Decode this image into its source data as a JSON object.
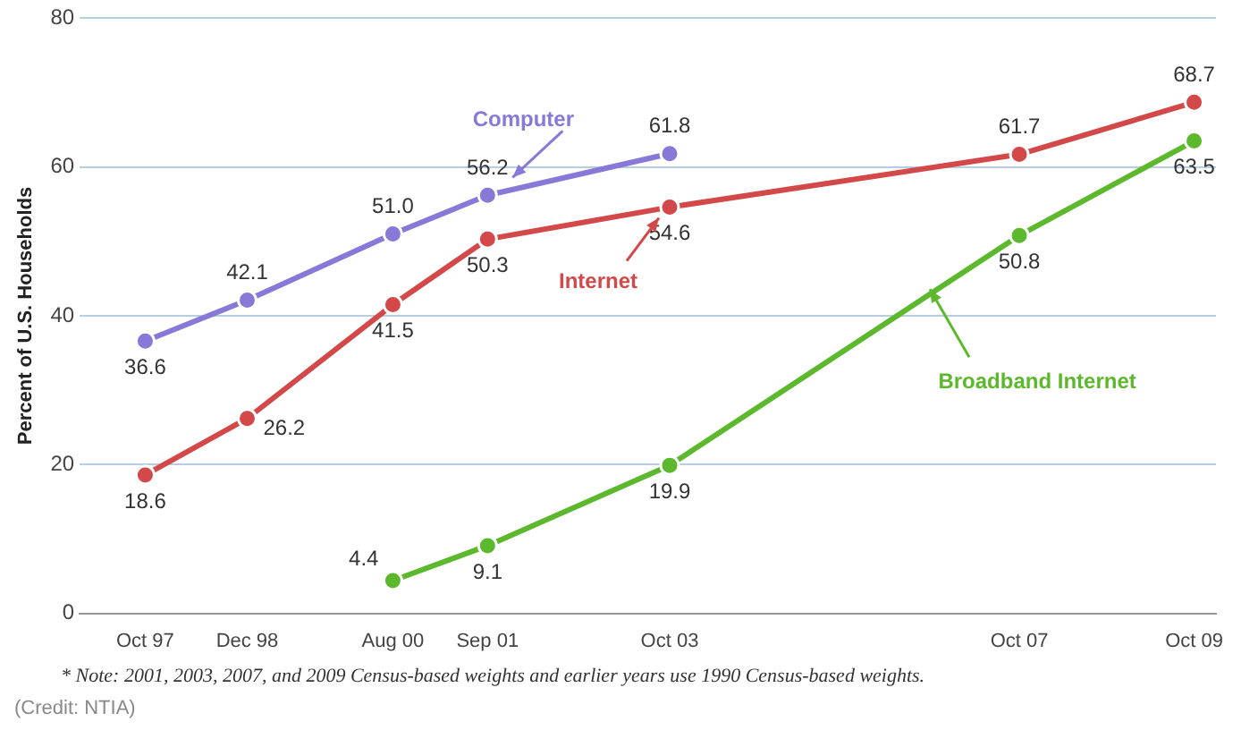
{
  "chart_data": {
    "type": "line",
    "ylabel": "Percent of U.S. Households",
    "xlim": [
      "1997-01",
      "2010-01"
    ],
    "xticks": [
      {
        "value": "1997-10",
        "label": "Oct 97"
      },
      {
        "value": "1998-12",
        "label": "Dec 98"
      },
      {
        "value": "2000-08",
        "label": "Aug 00"
      },
      {
        "value": "2001-09",
        "label": "Sep 01"
      },
      {
        "value": "2003-10",
        "label": "Oct 03"
      },
      {
        "value": "2007-10",
        "label": "Oct 07"
      },
      {
        "value": "2009-10",
        "label": "Oct 09"
      }
    ],
    "ylim": [
      0,
      80
    ],
    "yticks": [
      0,
      20,
      40,
      60,
      80
    ],
    "grid": "y",
    "legend": false,
    "marker": "circle",
    "line_style": "solid",
    "series": [
      {
        "name": "Computer",
        "color": "#8878d8",
        "x": [
          "1997-10",
          "1998-12",
          "2000-08",
          "2001-09",
          "2003-10"
        ],
        "values": [
          36.6,
          42.1,
          51.0,
          56.2,
          61.8
        ],
        "value_labels": [
          "36.6",
          "42.1",
          "51.0",
          "56.2",
          "61.8"
        ]
      },
      {
        "name": "Internet",
        "color": "#d34848",
        "x": [
          "1997-10",
          "1998-12",
          "2000-08",
          "2001-09",
          "2003-10",
          "2007-10",
          "2009-10"
        ],
        "values": [
          18.6,
          26.2,
          41.5,
          50.3,
          54.6,
          61.7,
          68.7
        ],
        "value_labels": [
          "18.6",
          "26.2",
          "41.5",
          "50.3",
          "54.6",
          "61.7",
          "68.7"
        ]
      },
      {
        "name": "Broadband Internet",
        "color": "#5cb82c",
        "x": [
          "2000-08",
          "2001-09",
          "2003-10",
          "2007-10",
          "2009-10"
        ],
        "values": [
          4.4,
          9.1,
          19.9,
          50.8,
          63.5
        ],
        "value_labels": [
          "4.4",
          "9.1",
          "19.9",
          "50.8",
          "63.5"
        ]
      }
    ],
    "annotations": [
      "* Note:  2001, 2003, 2007, and 2009 Census-based weights and earlier years use 1990 Census-based weights.",
      "(Credit: NTIA)"
    ]
  }
}
